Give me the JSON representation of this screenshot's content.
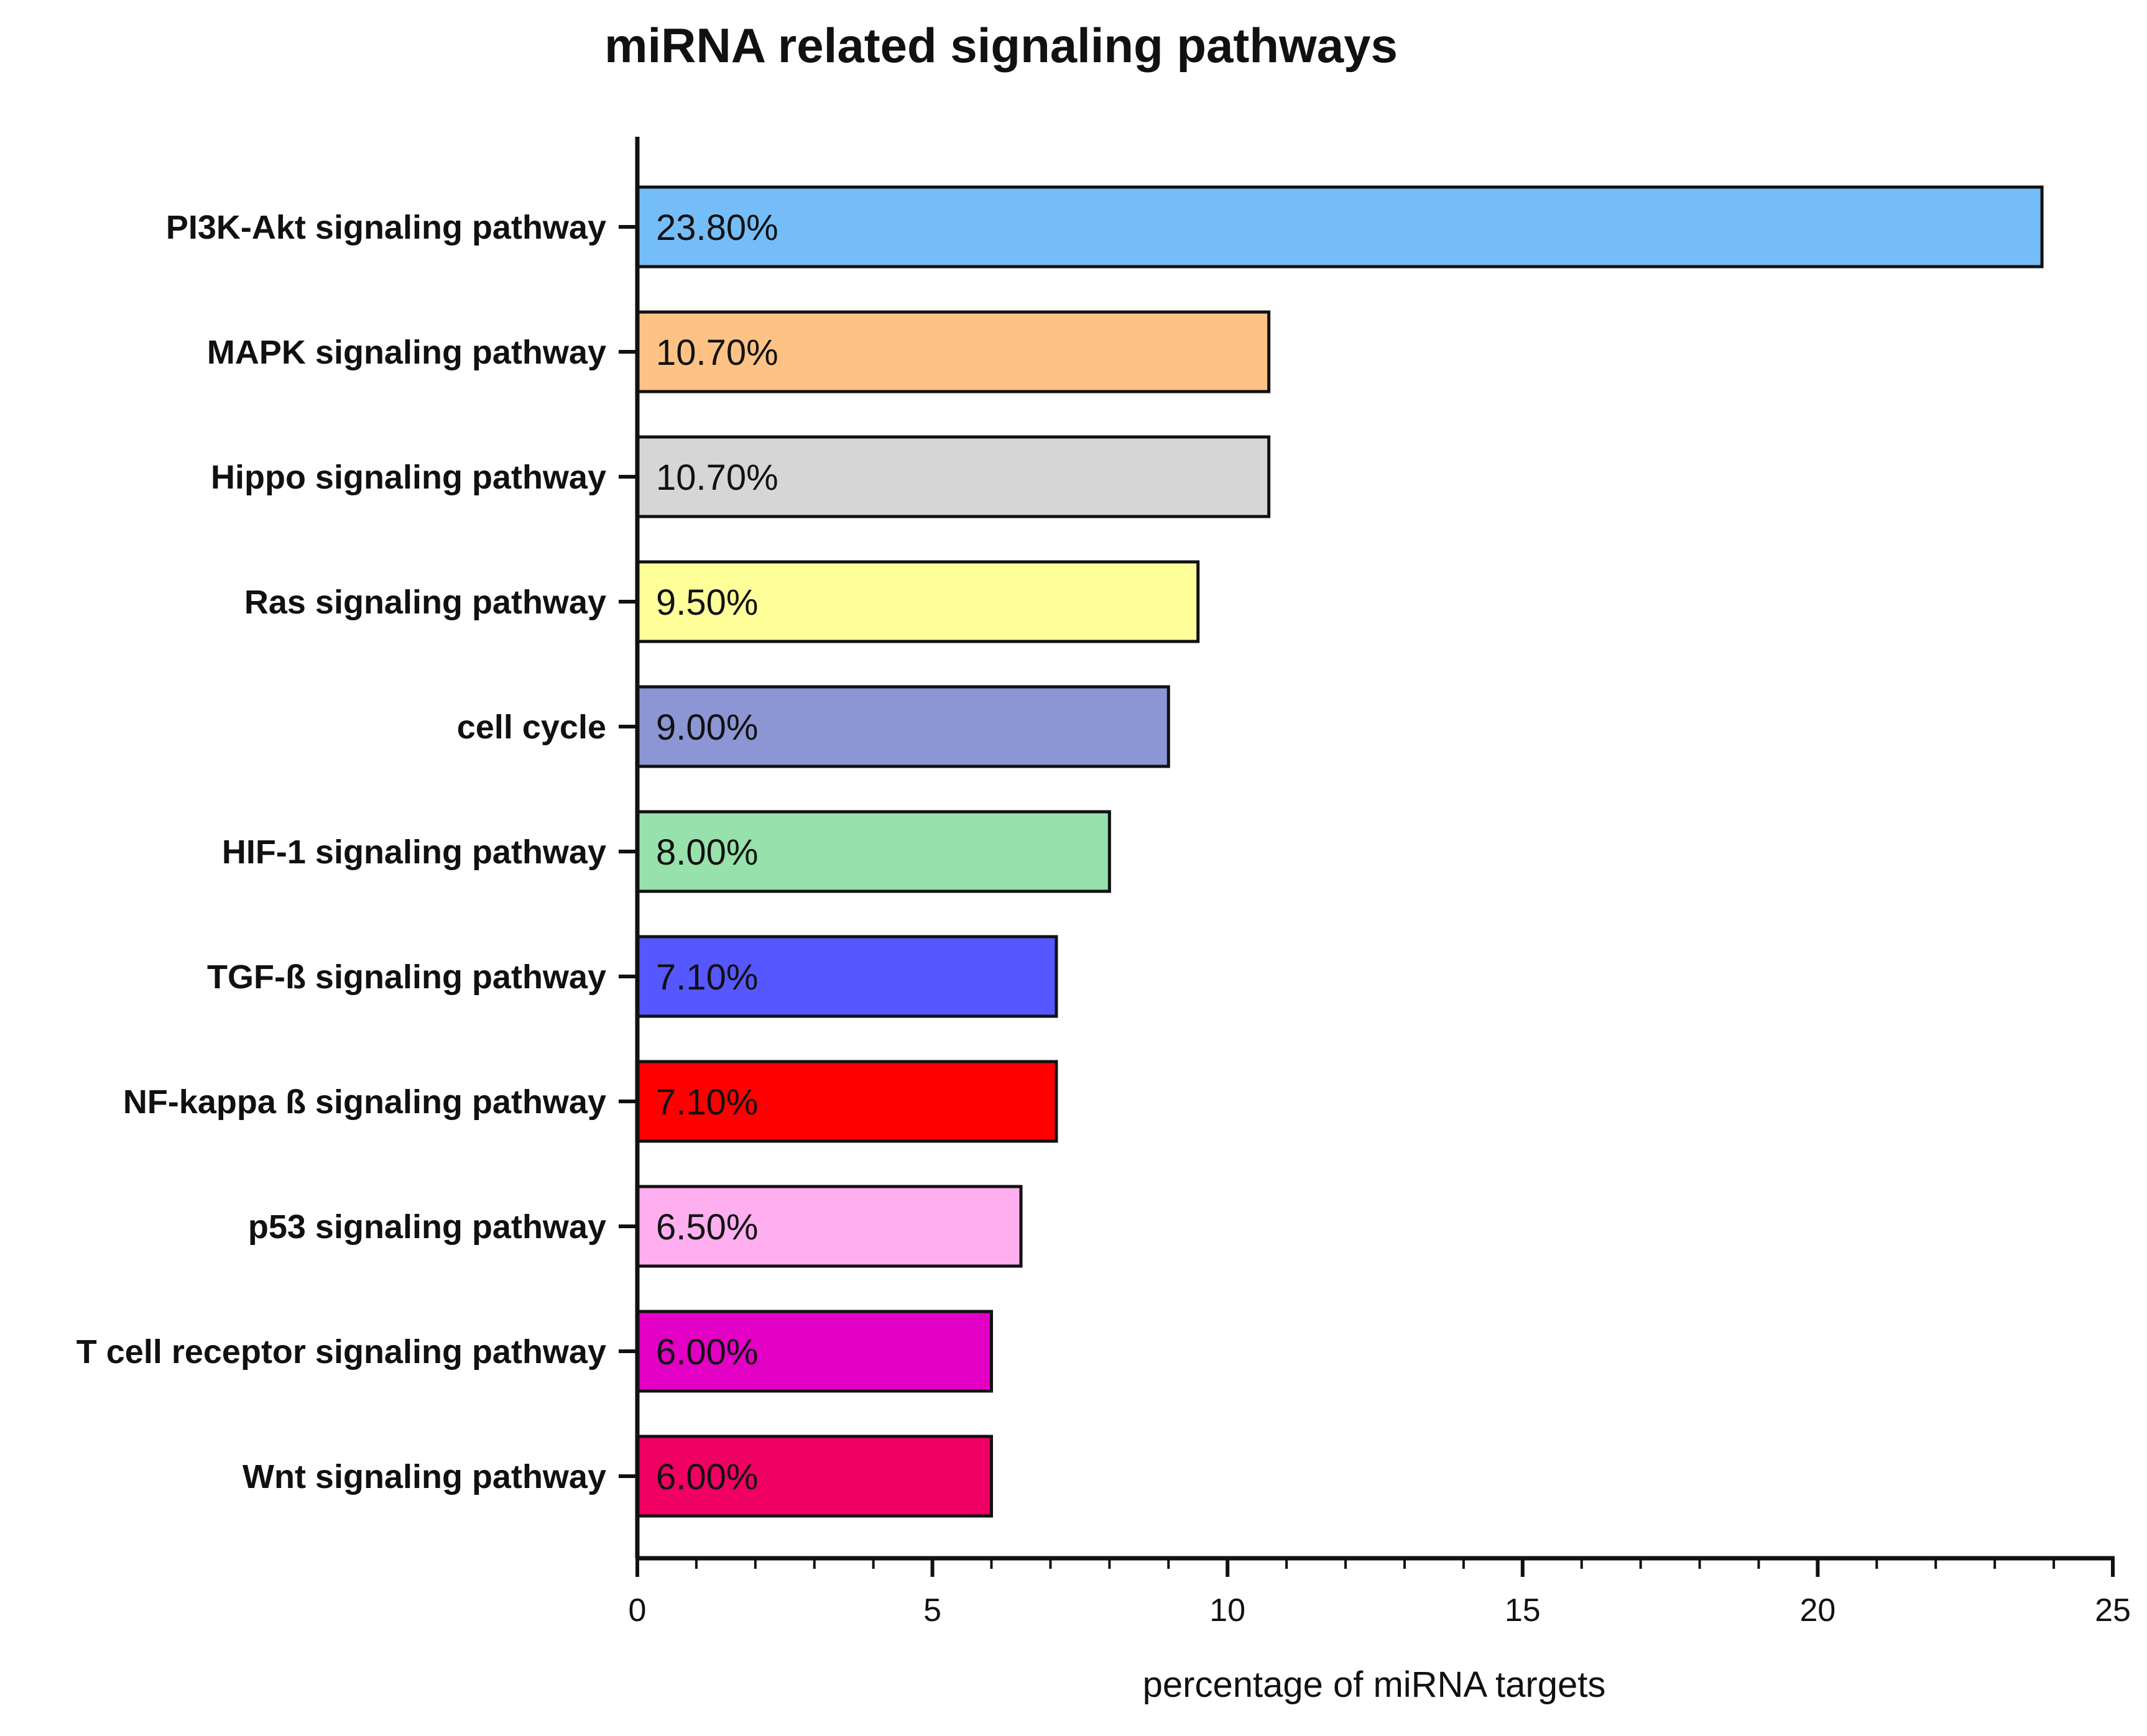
{
  "chart_data": {
    "type": "bar",
    "orientation": "horizontal",
    "title": "miRNA related signaling pathways",
    "xlabel": "percentage of miRNA targets",
    "ylabel": "",
    "xlim": [
      0,
      25
    ],
    "x_ticks": [
      "0",
      "5",
      "10",
      "15",
      "20",
      "25"
    ],
    "grid": false,
    "categories": [
      "PI3K-Akt signaling pathway",
      "MAPK signaling pathway",
      "Hippo signaling pathway",
      "Ras signaling pathway",
      "cell cycle",
      "HIF-1 signaling pathway",
      "TGF-ß signaling pathway",
      "NF-kappa ß signaling pathway",
      "p53 signaling pathway",
      "T cell receptor signaling pathway",
      "Wnt signaling pathway"
    ],
    "values": [
      23.8,
      10.7,
      10.7,
      9.5,
      9.0,
      8.0,
      7.1,
      7.1,
      6.5,
      6.0,
      6.0
    ],
    "data_labels": [
      "23.80%",
      "10.70%",
      "10.70%",
      "9.50%",
      "9.00%",
      "8.00%",
      "7.10%",
      "7.10%",
      "6.50%",
      "6.00%",
      "6.00%"
    ],
    "colors": [
      "#74bdf8",
      "#fec285",
      "#d6d6d6",
      "#ffff99",
      "#8c96d4",
      "#97e1ac",
      "#5757ff",
      "#ff0000",
      "#ffaff0",
      "#e100c3",
      "#f00062"
    ]
  }
}
